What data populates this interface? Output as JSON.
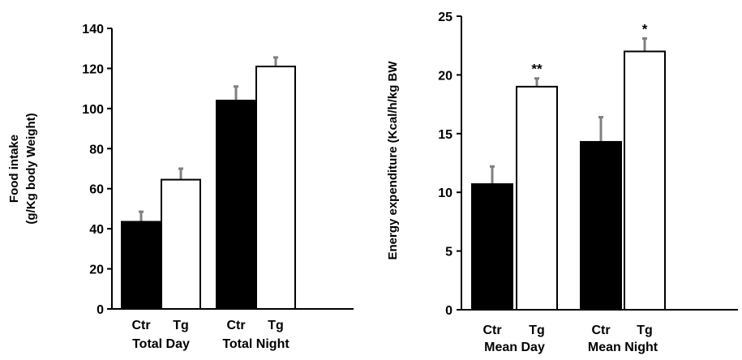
{
  "chart_data": [
    {
      "type": "bar",
      "ylabel_lines": [
        "Food intake",
        "(g/Kg body Weight)"
      ],
      "ylim": [
        0,
        140
      ],
      "yticks": [
        "0",
        "20",
        "40",
        "60",
        "80",
        "100",
        "120",
        "140"
      ],
      "group_labels": [
        "Total Day",
        "Total Night"
      ],
      "bar_labels": [
        "Ctr",
        "Tg"
      ],
      "bars": [
        {
          "group": "Total Day",
          "label": "Ctr",
          "value": 43.5,
          "error": 5,
          "fill": "#000000",
          "sig": ""
        },
        {
          "group": "Total Day",
          "label": "Tg",
          "value": 64.5,
          "error": 5.5,
          "fill": "#ffffff",
          "sig": ""
        },
        {
          "group": "Total Night",
          "label": "Ctr",
          "value": 104,
          "error": 7,
          "fill": "#000000",
          "sig": ""
        },
        {
          "group": "Total Night",
          "label": "Tg",
          "value": 121,
          "error": 4.5,
          "fill": "#ffffff",
          "sig": ""
        }
      ]
    },
    {
      "type": "bar",
      "ylabel_lines": [
        "Energy expenditure (Kcal/h/kg BW"
      ],
      "ylim": [
        0,
        25
      ],
      "yticks": [
        "0",
        "5",
        "10",
        "15",
        "20",
        "25"
      ],
      "group_labels": [
        "Mean Day",
        "Mean Night"
      ],
      "bar_labels": [
        "Ctr",
        "Tg"
      ],
      "bars": [
        {
          "group": "Mean Day",
          "label": "Ctr",
          "value": 10.7,
          "error": 1.5,
          "fill": "#000000",
          "sig": ""
        },
        {
          "group": "Mean Day",
          "label": "Tg",
          "value": 19,
          "error": 0.7,
          "fill": "#ffffff",
          "sig": "**"
        },
        {
          "group": "Mean Night",
          "label": "Ctr",
          "value": 14.3,
          "error": 2.1,
          "fill": "#000000",
          "sig": ""
        },
        {
          "group": "Mean Night",
          "label": "Tg",
          "value": 22,
          "error": 1.1,
          "fill": "#ffffff",
          "sig": "*"
        }
      ]
    }
  ],
  "colors": {
    "axis": "#000000",
    "error_bar": "#808080",
    "bar_stroke": "#000000"
  }
}
